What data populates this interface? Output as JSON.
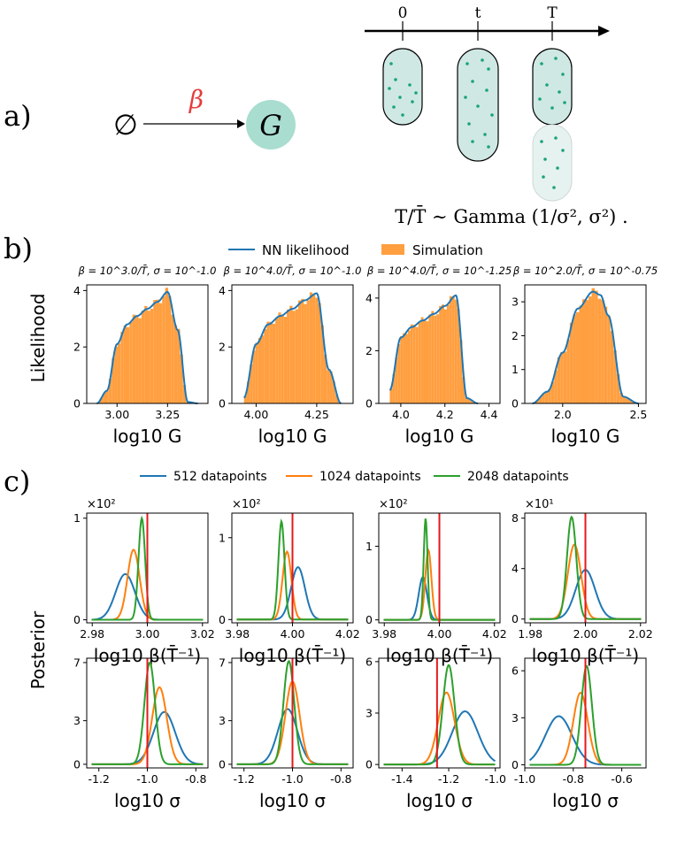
{
  "panel_a": {
    "label": "a)",
    "empty_set": "∅",
    "rate": "β",
    "node": "G",
    "timeline_ticks": [
      "0",
      "t",
      "T"
    ],
    "formula": "T/T̄ ∼ Gamma (1/σ², σ²) ."
  },
  "panel_b": {
    "label": "b)",
    "legend": [
      "NN likelihood",
      "Simulation"
    ],
    "ylabel": "Likelihood"
  },
  "panel_c": {
    "label": "c)",
    "legend": [
      "512 datapoints",
      "1024 datapoints",
      "2048 datapoints"
    ],
    "ylabel": "Posterior"
  },
  "colors": {
    "nn": "#1f77b4",
    "sim": "#ff9f40",
    "s512": "#1f77b4",
    "s1024": "#ff7f0e",
    "s2048": "#2ca02c",
    "truth": "#e31a1c",
    "cell": "#cfe8e4",
    "cell_faded": "#e6f2f0",
    "dot": "#1aa37a",
    "node": "#a8ddd0",
    "rate": "#e63c3c"
  },
  "chart_data": [
    {
      "type": "area",
      "panel": "b",
      "title": "β = 10^3.0/T̄,  σ = 10^-1.0",
      "xlabel": "log10 G",
      "ylabel": "Likelihood",
      "xlim": [
        2.85,
        3.45
      ],
      "ylim": [
        0,
        4.2
      ],
      "xticks": [
        "3.00",
        "3.25"
      ],
      "yticks": [
        "0",
        "2",
        "4"
      ],
      "x": [
        2.9,
        2.95,
        3.0,
        3.05,
        3.1,
        3.15,
        3.2,
        3.25,
        3.3,
        3.35,
        3.4
      ],
      "series": [
        {
          "name": "NN likelihood",
          "values": [
            0,
            0.45,
            2.1,
            2.8,
            3.1,
            3.35,
            3.6,
            3.95,
            2.6,
            0.05,
            0
          ]
        }
      ]
    },
    {
      "type": "area",
      "panel": "b",
      "title": "β = 10^4.0/T̄,  σ = 10^-1.0",
      "xlabel": "log10 G",
      "ylabel": "",
      "xlim": [
        3.9,
        4.4
      ],
      "ylim": [
        0,
        4.2
      ],
      "xticks": [
        "4.00",
        "4.25"
      ],
      "yticks": [
        "0",
        "2",
        "4"
      ],
      "x": [
        3.95,
        4.0,
        4.05,
        4.1,
        4.15,
        4.2,
        4.25,
        4.3,
        4.35
      ],
      "series": [
        {
          "name": "NN likelihood",
          "values": [
            0.2,
            2.1,
            2.8,
            3.1,
            3.35,
            3.65,
            3.9,
            1.2,
            0
          ]
        }
      ]
    },
    {
      "type": "area",
      "panel": "b",
      "title": "β = 10^4.0/T̄,  σ = 10^-1.25",
      "xlabel": "log10 G",
      "ylabel": "",
      "xlim": [
        3.9,
        4.45
      ],
      "ylim": [
        0,
        4.5
      ],
      "xticks": [
        "4.0",
        "4.2",
        "4.4"
      ],
      "yticks": [
        "0",
        "2",
        "4"
      ],
      "x": [
        3.95,
        4.0,
        4.05,
        4.1,
        4.15,
        4.2,
        4.25,
        4.3,
        4.35
      ],
      "series": [
        {
          "name": "NN likelihood",
          "values": [
            0.5,
            2.5,
            2.9,
            3.15,
            3.4,
            3.7,
            4.1,
            0.2,
            0
          ]
        }
      ]
    },
    {
      "type": "area",
      "panel": "b",
      "title": "β = 10^2.0/T̄,  σ = 10^-0.75",
      "xlabel": "log10 G",
      "ylabel": "",
      "xlim": [
        1.75,
        2.55
      ],
      "ylim": [
        0,
        3.5
      ],
      "xticks": [
        "2.0",
        "2.5"
      ],
      "yticks": [
        "0",
        "1",
        "2",
        "3"
      ],
      "x": [
        1.8,
        1.9,
        2.0,
        2.1,
        2.2,
        2.25,
        2.3,
        2.4,
        2.5
      ],
      "series": [
        {
          "name": "NN likelihood",
          "values": [
            0,
            0.35,
            1.5,
            2.8,
            3.3,
            3.2,
            2.6,
            0.2,
            0
          ]
        }
      ]
    },
    {
      "type": "line",
      "panel": "c",
      "multiplier": "×10²",
      "xlabel": "log10 β(T̄⁻¹)",
      "ylabel": "Posterior",
      "xlim": [
        2.978,
        3.022
      ],
      "ylim": [
        -0.03,
        1.05
      ],
      "xticks": [
        "2.98",
        "3.00",
        "3.02"
      ],
      "yticks": [
        "0",
        "1"
      ],
      "truth": 3.0,
      "series": [
        {
          "name": "512 datapoints",
          "mu": 2.992,
          "sd": 0.0035,
          "peak": 0.45
        },
        {
          "name": "1024 datapoints",
          "mu": 2.995,
          "sd": 0.0022,
          "peak": 0.69
        },
        {
          "name": "2048 datapoints",
          "mu": 2.998,
          "sd": 0.0012,
          "peak": 1.0
        }
      ]
    },
    {
      "type": "line",
      "panel": "c",
      "multiplier": "×10²",
      "xlabel": "log10 β(T̄⁻¹)",
      "ylabel": "",
      "xlim": [
        3.978,
        4.022
      ],
      "ylim": [
        -0.04,
        1.3
      ],
      "xticks": [
        "3.98",
        "4.00",
        "4.02"
      ],
      "yticks": [
        "0",
        "1"
      ],
      "truth": 4.0,
      "series": [
        {
          "name": "512 datapoints",
          "mu": 4.002,
          "sd": 0.0025,
          "peak": 0.64
        },
        {
          "name": "1024 datapoints",
          "mu": 3.998,
          "sd": 0.0016,
          "peak": 0.83
        },
        {
          "name": "2048 datapoints",
          "mu": 3.996,
          "sd": 0.0011,
          "peak": 1.2
        }
      ]
    },
    {
      "type": "line",
      "panel": "c",
      "multiplier": "×10²",
      "xlabel": "log10 β(T̄⁻¹)",
      "ylabel": "",
      "xlim": [
        3.978,
        4.022
      ],
      "ylim": [
        -0.04,
        1.45
      ],
      "xticks": [
        "3.98",
        "4.00",
        "4.02"
      ],
      "yticks": [
        "0",
        "1"
      ],
      "truth": 4.0,
      "series": [
        {
          "name": "512 datapoints",
          "mu": 3.994,
          "sd": 0.0015,
          "peak": 0.58
        },
        {
          "name": "1024 datapoints",
          "mu": 3.996,
          "sd": 0.0011,
          "peak": 0.95
        },
        {
          "name": "2048 datapoints",
          "mu": 3.995,
          "sd": 0.0007,
          "peak": 1.38
        }
      ]
    },
    {
      "type": "line",
      "panel": "c",
      "multiplier": "×10¹",
      "xlabel": "log10 β(T̄⁻¹)",
      "ylabel": "",
      "xlim": [
        1.978,
        2.022
      ],
      "ylim": [
        -0.3,
        8.4
      ],
      "xticks": [
        "1.98",
        "2.00",
        "2.02"
      ],
      "yticks": [
        "0",
        "4",
        "8"
      ],
      "truth": 2.0,
      "series": [
        {
          "name": "512 datapoints",
          "mu": 2.0,
          "sd": 0.0035,
          "peak": 3.9
        },
        {
          "name": "1024 datapoints",
          "mu": 1.996,
          "sd": 0.0024,
          "peak": 5.9
        },
        {
          "name": "2048 datapoints",
          "mu": 1.995,
          "sd": 0.0017,
          "peak": 8.1
        }
      ]
    },
    {
      "type": "line",
      "panel": "c",
      "xlabel": "log10 σ",
      "ylabel": "Posterior",
      "xlim": [
        -1.25,
        -0.75
      ],
      "ylim": [
        -0.25,
        7.3
      ],
      "xticks": [
        "-1.2",
        "-1.0",
        "-0.8"
      ],
      "yticks": [
        "0",
        "3",
        "7"
      ],
      "truth": -1.0,
      "series": [
        {
          "name": "512 datapoints",
          "mu": -0.93,
          "sd": 0.045,
          "peak": 3.6
        },
        {
          "name": "1024 datapoints",
          "mu": -0.95,
          "sd": 0.03,
          "peak": 5.3
        },
        {
          "name": "2048 datapoints",
          "mu": -0.99,
          "sd": 0.022,
          "peak": 7.0
        }
      ]
    },
    {
      "type": "line",
      "panel": "c",
      "xlabel": "log10 σ",
      "ylabel": "",
      "xlim": [
        -1.25,
        -0.75
      ],
      "ylim": [
        -0.25,
        7.3
      ],
      "xticks": [
        "-1.2",
        "-1.0",
        "-0.8"
      ],
      "yticks": [
        "0",
        "3",
        "7"
      ],
      "truth": -1.0,
      "series": [
        {
          "name": "512 datapoints",
          "mu": -1.02,
          "sd": 0.04,
          "peak": 3.8
        },
        {
          "name": "1024 datapoints",
          "mu": -1.0,
          "sd": 0.029,
          "peak": 5.7
        },
        {
          "name": "2048 datapoints",
          "mu": -1.015,
          "sd": 0.022,
          "peak": 7.1
        }
      ]
    },
    {
      "type": "line",
      "panel": "c",
      "xlabel": "log10 σ",
      "ylabel": "",
      "xlim": [
        -1.5,
        -0.98
      ],
      "ylim": [
        -0.2,
        6.2
      ],
      "xticks": [
        "-1.4",
        "-1.2",
        "-1.0"
      ],
      "yticks": [
        "0",
        "3",
        "6"
      ],
      "truth": -1.25,
      "series": [
        {
          "name": "512 datapoints",
          "mu": -1.13,
          "sd": 0.055,
          "peak": 3.1
        },
        {
          "name": "1024 datapoints",
          "mu": -1.21,
          "sd": 0.035,
          "peak": 4.2
        },
        {
          "name": "2048 datapoints",
          "mu": -1.2,
          "sd": 0.025,
          "peak": 5.8
        }
      ]
    },
    {
      "type": "line",
      "panel": "c",
      "xlabel": "log10 σ",
      "ylabel": "",
      "xlim": [
        -1.0,
        -0.5
      ],
      "ylim": [
        -0.2,
        6.8
      ],
      "xticks": [
        "-1.0",
        "-0.8",
        "-0.6"
      ],
      "yticks": [
        "0",
        "3",
        "6"
      ],
      "truth": -0.75,
      "series": [
        {
          "name": "512 datapoints",
          "mu": -0.86,
          "sd": 0.055,
          "peak": 3.1
        },
        {
          "name": "1024 datapoints",
          "mu": -0.77,
          "sd": 0.03,
          "peak": 4.6
        },
        {
          "name": "2048 datapoints",
          "mu": -0.745,
          "sd": 0.022,
          "peak": 6.3
        }
      ]
    }
  ]
}
